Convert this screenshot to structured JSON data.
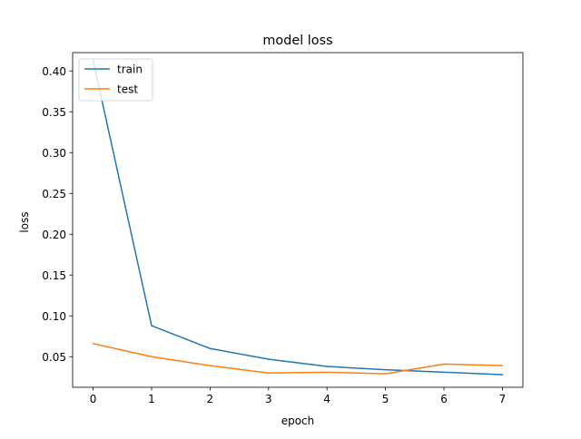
{
  "chart_data": {
    "type": "line",
    "title": "model loss",
    "xlabel": "epoch",
    "ylabel": "loss",
    "x": [
      0,
      1,
      2,
      3,
      4,
      5,
      6,
      7
    ],
    "xlim": [
      -0.35,
      7.35
    ],
    "ylim": [
      0.0125,
      0.4225
    ],
    "xticks": [
      0,
      1,
      2,
      3,
      4,
      5,
      6,
      7
    ],
    "xtick_labels": [
      "0",
      "1",
      "2",
      "3",
      "4",
      "5",
      "6",
      "7"
    ],
    "yticks": [
      0.05,
      0.1,
      0.15,
      0.2,
      0.25,
      0.3,
      0.35,
      0.4
    ],
    "ytick_labels": [
      "0.05",
      "0.10",
      "0.15",
      "0.20",
      "0.25",
      "0.30",
      "0.35",
      "0.40"
    ],
    "grid": false,
    "legend_position": "top-left",
    "series": [
      {
        "name": "train",
        "color": "#1f77b4",
        "values": [
          0.413,
          0.088,
          0.06,
          0.047,
          0.038,
          0.034,
          0.031,
          0.028
        ]
      },
      {
        "name": "test",
        "color": "#ff7f0e",
        "values": [
          0.066,
          0.05,
          0.039,
          0.03,
          0.031,
          0.029,
          0.041,
          0.039
        ]
      }
    ]
  }
}
